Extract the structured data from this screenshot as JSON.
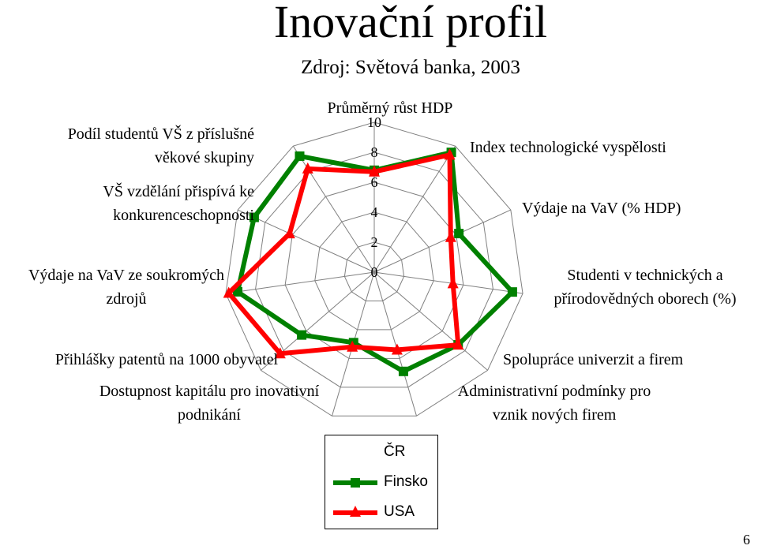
{
  "title": "Inovační profil",
  "subtitle": "Zdroj: Světová banka, 2003",
  "page_number": "6",
  "chart_data": {
    "type": "radar",
    "axes": [
      "Průměrný růst HDP",
      "Index technologické vyspělosti",
      "Výdaje na VaV (% HDP)",
      "Studenti v technických a přírodovědných oborech (%)",
      "Spolupráce univerzit a firem",
      "Administrativní podmínky pro vznik nových firem",
      "Dostupnost kapitálu pro inovativní podnikání",
      "Přihlášky patentů na 1000 obyvatel",
      "Výdaje na VaV ze soukromých zdrojů",
      "VŠ vzdělání přispívá ke konkurenceschopnosti",
      "Podíl studentů VŠ z příslušné věkové skupiny"
    ],
    "axis_labels_display": [
      [
        "Průměrný růst HDP"
      ],
      [
        "Index technologické vyspělosti"
      ],
      [
        "Výdaje na VaV (% HDP)"
      ],
      [
        "Studenti v technických a",
        "přírodovědných oborech (%)"
      ],
      [
        "Spolupráce univerzit a firem"
      ],
      [
        "Administrativní podmínky pro",
        "vznik nových firem"
      ],
      [
        "Dostupnost kapitálu pro inovativní",
        "podnikání"
      ],
      [
        "Přihlášky patentů na 1000 obyvatel"
      ],
      [
        "Výdaje na VaV ze soukromých",
        "zdrojů"
      ],
      [
        "VŠ vzdělání přispívá ke",
        "konkurenceschopnosti"
      ],
      [
        "Podíl studentů VŠ z příslušné",
        "věkové skupiny"
      ]
    ],
    "scale": {
      "min": 0,
      "max": 10,
      "ticks": [
        "0",
        "2",
        "4",
        "6",
        "8",
        "10"
      ]
    },
    "series": [
      {
        "name": "ČR",
        "values": []
      },
      {
        "name": "Finsko",
        "color": "#008000",
        "marker": "square",
        "values": [
          6.8,
          9.5,
          6.2,
          9.3,
          7.4,
          6.9,
          4.9,
          6.4,
          9.2,
          8.8,
          9.2
        ]
      },
      {
        "name": "USA",
        "color": "#ff0000",
        "marker": "triangle",
        "values": [
          6.7,
          9.3,
          5.6,
          5.3,
          7.4,
          5.4,
          5.2,
          8.3,
          9.8,
          6.2,
          8.2
        ]
      }
    ],
    "legend_position": "bottom"
  }
}
